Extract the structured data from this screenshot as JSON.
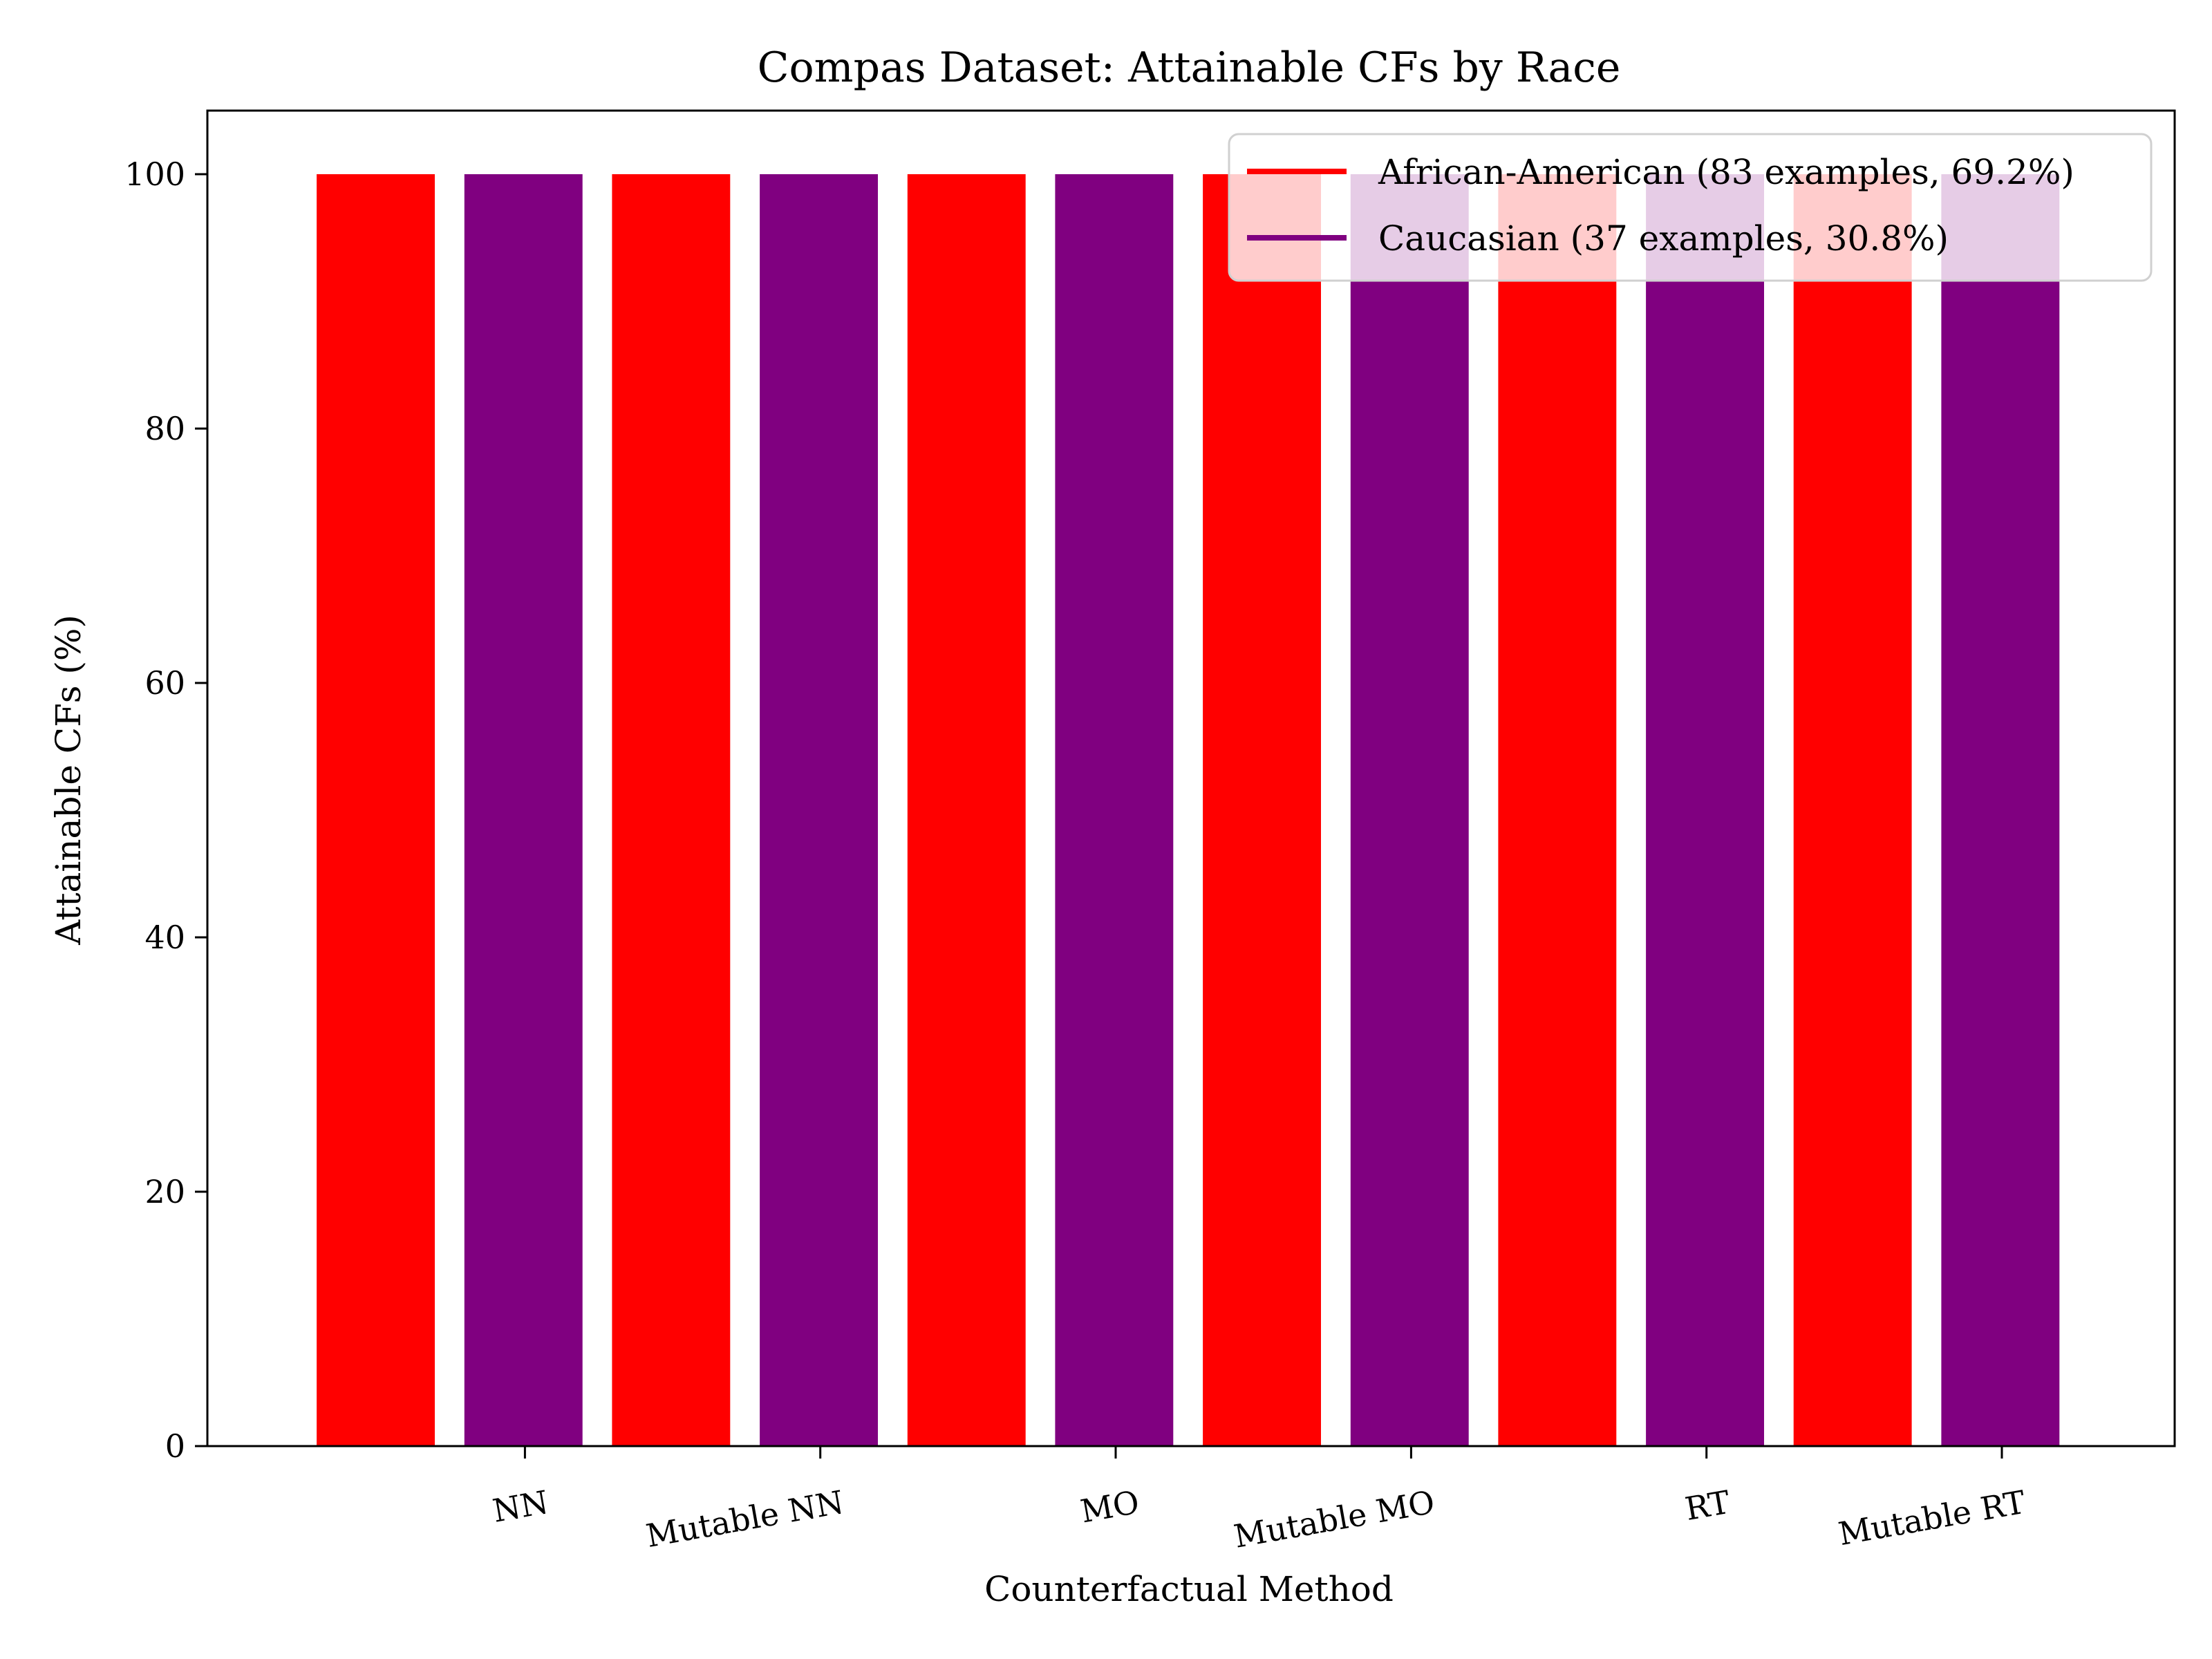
{
  "chart_data": {
    "type": "bar",
    "title": "Compas Dataset: Attainable CFs by Race",
    "xlabel": "Counterfactual Method",
    "ylabel": "Attainable CFs (%)",
    "categories": [
      "NN",
      "Mutable NN",
      "MO",
      "Mutable MO",
      "RT",
      "Mutable RT"
    ],
    "series": [
      {
        "name": "African-American (83 examples, 69.2%)",
        "color": "#ff0000",
        "values": [
          100,
          100,
          100,
          100,
          100,
          100
        ]
      },
      {
        "name": "Caucasian (37 examples, 30.8%)",
        "color": "#800080",
        "values": [
          100,
          100,
          100,
          100,
          100,
          100
        ]
      }
    ],
    "ylim": [
      0,
      105
    ],
    "yticks": [
      0,
      20,
      40,
      60,
      80,
      100
    ],
    "grid": false,
    "legend_position": "top-right"
  }
}
